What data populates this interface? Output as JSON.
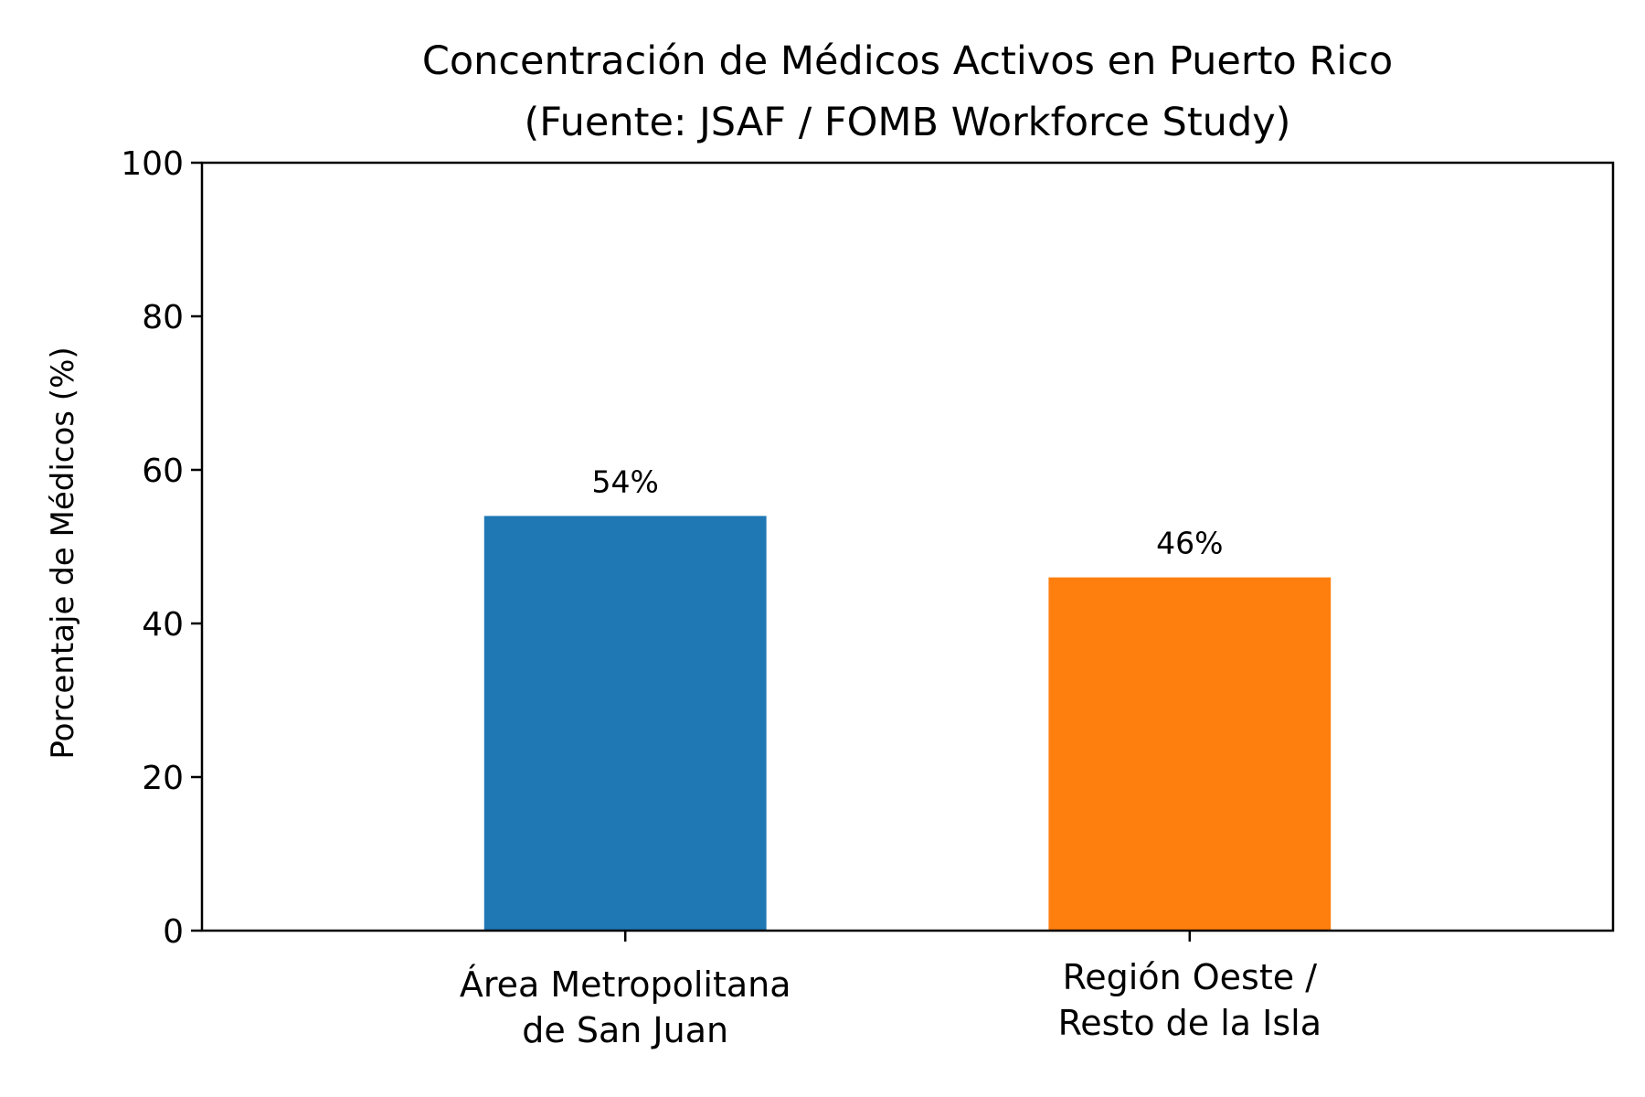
{
  "chart_data": {
    "type": "bar",
    "title": [
      "Concentración de Médicos Activos en Puerto Rico",
      "(Fuente: JSAF / FOMB Workforce Study)"
    ],
    "xlabel": "",
    "ylabel": "Porcentaje de Médicos (%)",
    "ylim": [
      0,
      100
    ],
    "yticks": [
      0,
      20,
      40,
      60,
      80,
      100
    ],
    "grid": false,
    "legend": "none",
    "categories": [
      [
        "Área Metropolitana",
        "de San Juan"
      ],
      [
        "Región Oeste /",
        "Resto de la Isla"
      ]
    ],
    "values": [
      54,
      46
    ],
    "data_labels": [
      "54%",
      "46%"
    ],
    "colors": [
      "#1f77b4",
      "#ff7f0e"
    ]
  }
}
